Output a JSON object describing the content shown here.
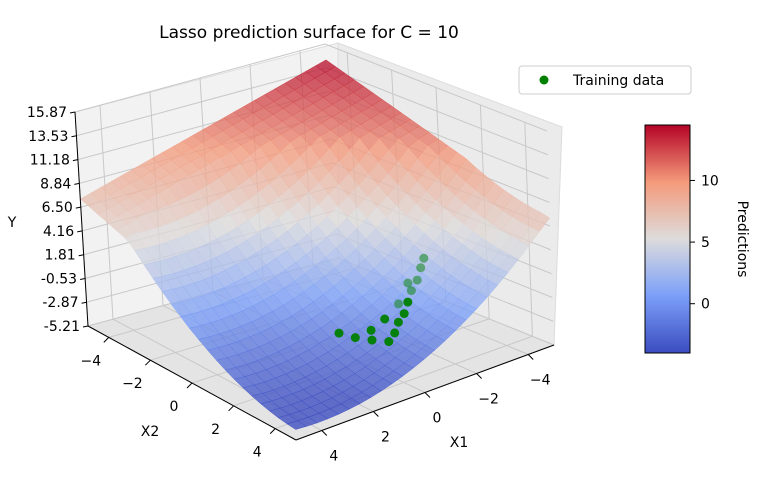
{
  "chart_data": {
    "type": "surface-3d",
    "title": "Lasso prediction surface for C = 10",
    "xlabel": "X1",
    "ylabel": "X2",
    "zlabel": "Y",
    "x_ticks": [
      "−4",
      "−2",
      "0",
      "2",
      "4"
    ],
    "y_ticks": [
      "−4",
      "−2",
      "0",
      "2",
      "4"
    ],
    "z_ticks": [
      "15.87",
      "13.53",
      "11.18",
      "8.84",
      "6.50",
      "4.16",
      "1.81",
      "-0.53",
      "-2.87",
      "-5.21"
    ],
    "zlim": [
      -5.21,
      15.87
    ],
    "surface_corners": [
      {
        "x1": 5,
        "x2": -5,
        "y": 7.3
      },
      {
        "x1": -5,
        "x2": -5,
        "y": 14.3
      },
      {
        "x1": -5,
        "x2": 5,
        "y": 7.3
      },
      {
        "x1": 5,
        "x2": 5,
        "y": 0.0
      }
    ],
    "surface_min": {
      "x1": 1.5,
      "x2": 3.0,
      "y": -3.5
    },
    "training_points": [
      {
        "x1": 1.0,
        "x2": 3.0,
        "y": -0.9
      },
      {
        "x1": 0.6,
        "x2": 3.3,
        "y": -1.2
      },
      {
        "x1": 0.2,
        "x2": 3.6,
        "y": -1.4
      },
      {
        "x1": -0.2,
        "x2": 3.4,
        "y": -1.1
      },
      {
        "x1": -0.6,
        "x2": 3.1,
        "y": -0.7
      },
      {
        "x1": -1.0,
        "x2": 2.9,
        "y": -0.4
      },
      {
        "x1": -1.4,
        "x2": 2.6,
        "y": 0.1
      },
      {
        "x1": -1.8,
        "x2": 2.3,
        "y": 0.6
      },
      {
        "x1": -2.2,
        "x2": 2.1,
        "y": 1.1
      },
      {
        "x1": -2.6,
        "x2": 1.8,
        "y": 1.7
      },
      {
        "x1": 1.3,
        "x2": 2.6,
        "y": -0.6
      },
      {
        "x1": 0.3,
        "x2": 2.9,
        "y": -0.9
      },
      {
        "x1": -0.4,
        "x2": 2.7,
        "y": -0.6
      },
      {
        "x1": -1.2,
        "x2": 2.4,
        "y": -0.1
      },
      {
        "x1": -2.0,
        "x2": 1.9,
        "y": 0.8
      },
      {
        "x1": -2.9,
        "x2": 1.6,
        "y": 2.2
      }
    ],
    "legend": {
      "label": "Training data",
      "position": "top-right",
      "marker_color": "#008000"
    },
    "colorbar": {
      "label": "Predictions",
      "ticks": [
        "0",
        "5",
        "10"
      ],
      "tick_values": [
        0,
        5,
        10
      ],
      "range": [
        -4.0,
        14.5
      ]
    },
    "colormap": "coolwarm",
    "grid": true
  }
}
